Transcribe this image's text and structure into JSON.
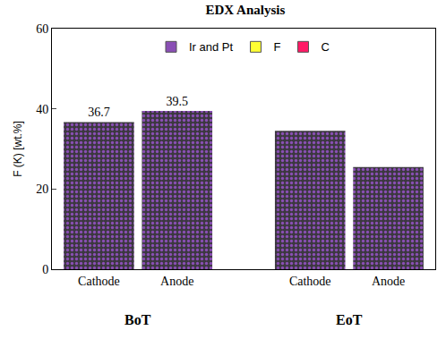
{
  "chart_data": {
    "type": "bar",
    "title": "EDX Analysis",
    "y_label": "F (K) [wt.%]",
    "categories": [
      "Cathode",
      "Anode",
      "Cathode",
      "Anode"
    ],
    "values": [
      36.7,
      39.5,
      34.5,
      25.5
    ],
    "value_labels": [
      "36.7",
      "39.5",
      null,
      null
    ],
    "data_labels": true,
    "color": "#8a4fb5",
    "groups": [
      {
        "name": "BoT",
        "size": 2
      },
      {
        "name": "EoT",
        "size": 2
      }
    ],
    "legend_entries": [
      {
        "name": "Ir and Pt",
        "color": "#8a4fb5"
      },
      {
        "name": "F",
        "color": "#ffff33"
      },
      {
        "name": "C",
        "color": "#ff1a66"
      }
    ],
    "legend": "top",
    "ylim": [
      0,
      60
    ],
    "yticks": [
      0,
      20,
      40,
      60
    ],
    "grid": false
  }
}
